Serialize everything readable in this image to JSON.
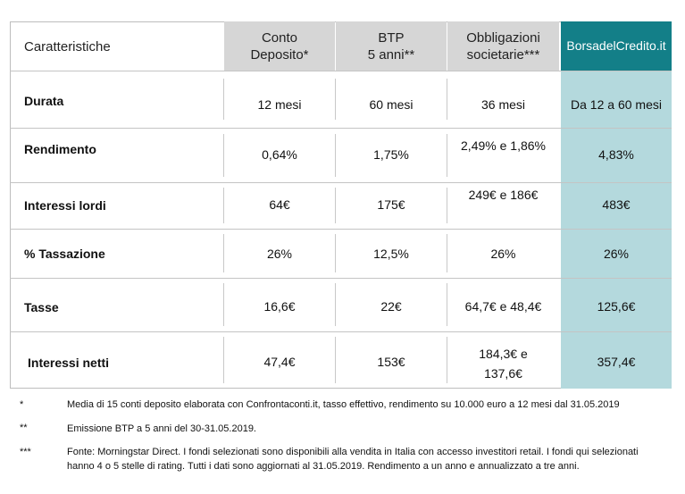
{
  "header": {
    "label": "Caratteristiche",
    "columns": [
      {
        "line1": "Conto",
        "line2": "Deposito*"
      },
      {
        "line1": "BTP",
        "line2": "5 anni**"
      },
      {
        "line1": "Obbligazioni",
        "line2": "societarie***"
      },
      {
        "line1": "BorsadelCredito.it",
        "line2": ""
      }
    ]
  },
  "rows": [
    {
      "label": "Durata",
      "values": [
        "12 mesi",
        "60 mesi",
        "36 mesi",
        "Da 12 a 60 mesi"
      ]
    },
    {
      "label": "Rendimento",
      "values": [
        "0,64%",
        "1,75%",
        "2,49% e 1,86%",
        "4,83%"
      ]
    },
    {
      "label": "Interessi lordi",
      "values": [
        "64€",
        "175€",
        "249€ e 186€",
        "483€"
      ]
    },
    {
      "label": "% Tassazione",
      "values": [
        "26%",
        "12,5%",
        "26%",
        "26%"
      ]
    },
    {
      "label": "Tasse",
      "values": [
        "16,6€",
        "22€",
        "64,7€ e 48,4€",
        "125,6€"
      ]
    },
    {
      "label": "Interessi netti",
      "values": [
        "47,4€",
        "153€",
        "184,3€ e",
        "357,4€"
      ],
      "extra": "137,6€"
    }
  ],
  "footnotes": [
    {
      "mark": "*",
      "text": "Media di 15 conti deposito elaborata con Confrontaconti.it, tasso effettivo, rendimento su 10.000 euro a 12 mesi dal 31.05.2019"
    },
    {
      "mark": "**",
      "text": "Emissione BTP a 5 anni del 30-31.05.2019."
    },
    {
      "mark": "***",
      "text": "Fonte: Morningstar Direct. I fondi selezionati sono disponibili alla vendita in Italia con accesso investitori retail. I fondi qui selezionati hanno 4 o 5 stelle di rating. Tutti i dati sono aggiornati al 31.05.2019. Rendimento a un anno e annualizzato a tre anni."
    }
  ],
  "colors": {
    "brand": "#137f88",
    "brand_light": "#b4d9dd",
    "header_grey": "#d6d6d6"
  }
}
